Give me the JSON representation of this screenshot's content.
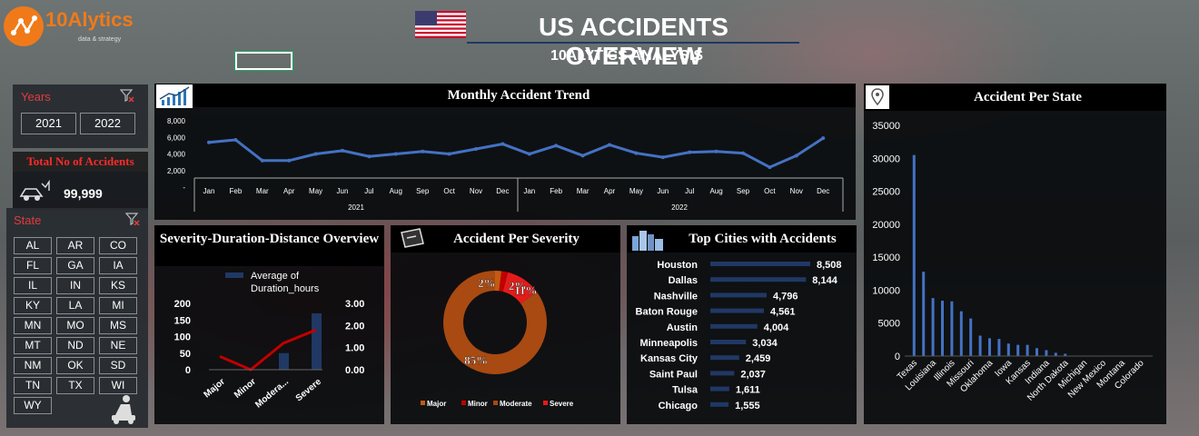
{
  "brand": {
    "name": "10Alytics",
    "tagline": "data & strategy"
  },
  "header": {
    "title": "US ACCIDENTS OVERVIEW",
    "subtitle": "10ALYTICS ANALYSIS"
  },
  "years_filter": {
    "title": "Years",
    "options": [
      "2021",
      "2022"
    ]
  },
  "total_card": {
    "title": "Total No of Accidents",
    "value": "99,999"
  },
  "state_filter": {
    "title": "State",
    "options": [
      "AL",
      "AR",
      "CO",
      "FL",
      "GA",
      "IA",
      "IL",
      "IN",
      "KS",
      "KY",
      "LA",
      "MI",
      "MN",
      "MO",
      "MS",
      "MT",
      "ND",
      "NE",
      "NM",
      "OK",
      "SD",
      "TN",
      "TX",
      "WI",
      "WY"
    ]
  },
  "monthly_trend": {
    "title": "Monthly Accident Trend",
    "chart_data": {
      "type": "line",
      "categories": [
        "Jan",
        "Feb",
        "Mar",
        "Apr",
        "May",
        "Jun",
        "Jul",
        "Aug",
        "Sep",
        "Oct",
        "Nov",
        "Dec",
        "Jan",
        "Feb",
        "Mar",
        "Apr",
        "May",
        "Jun",
        "Jul",
        "Aug",
        "Sep",
        "Oct",
        "Nov",
        "Dec"
      ],
      "groups": [
        "2021",
        "2022"
      ],
      "values": [
        5400,
        5700,
        3200,
        3200,
        4000,
        4400,
        3700,
        4000,
        4300,
        4000,
        4600,
        5200,
        4000,
        5000,
        3800,
        5100,
        4100,
        3600,
        4200,
        4300,
        4100,
        2400,
        3800,
        5900
      ],
      "yticks": [
        "8,000",
        "6,000",
        "4,000",
        "2,000",
        "-"
      ],
      "ylim": [
        0,
        8000
      ],
      "color": "#4472c4"
    }
  },
  "severity_overview": {
    "title": "Severity-Duration-Distance Overview",
    "chart_data": {
      "type": "bar",
      "categories": [
        "Major",
        "Minor",
        "Moderate",
        "Severe"
      ],
      "category_labels": [
        "Major",
        "Minor",
        "Modera...",
        "Severe"
      ],
      "series": [
        {
          "name": "Average of Duration_hours",
          "values": [
            0,
            0,
            50,
            170
          ],
          "axis": "left",
          "color": "#203864"
        },
        {
          "values": [
            0.6,
            0.0,
            1.2,
            1.8
          ],
          "axis": "right",
          "type": "line",
          "color": "#c00000"
        }
      ],
      "y_left_ticks": [
        "200",
        "150",
        "100",
        "50",
        "0"
      ],
      "y_right_ticks": [
        "3.00",
        "2.00",
        "1.00",
        "0.00"
      ],
      "ylim_left": [
        0,
        200
      ],
      "ylim_right": [
        0,
        3
      ]
    }
  },
  "severity_donut": {
    "title": "Accident Per Severity",
    "chart_data": {
      "type": "pie",
      "categories": [
        "Major",
        "Minor",
        "Moderate",
        "Severe"
      ],
      "values": [
        2,
        2,
        85,
        11
      ],
      "labels": [
        "2%",
        "2%",
        "85%",
        "11%"
      ],
      "colors": [
        "#c55a11",
        "#c00000",
        "#a84a12",
        "#e31b1b"
      ]
    }
  },
  "top_cities": {
    "title": "Top Cities with Accidents",
    "chart_data": {
      "type": "bar",
      "categories": [
        "Houston",
        "Dallas",
        "Nashville",
        "Baton Rouge",
        "Austin",
        "Minneapolis",
        "Kansas City",
        "Saint Paul",
        "Tulsa",
        "Chicago"
      ],
      "values": [
        8508,
        8144,
        4796,
        4561,
        4004,
        3034,
        2459,
        2037,
        1611,
        1555
      ],
      "labels": [
        "8,508",
        "8,144",
        "4,796",
        "4,561",
        "4,004",
        "3,034",
        "2,459",
        "2,037",
        "1,611",
        "1,555"
      ],
      "color": "#203864"
    }
  },
  "per_state": {
    "title": "Accident Per State",
    "chart_data": {
      "type": "bar",
      "categories": [
        "Texas",
        "",
        "Louisiana",
        "",
        "Illinois",
        "",
        "Missouri",
        "",
        "Oklahoma",
        "",
        "Iowa",
        "",
        "Kansas",
        "",
        "Indiana",
        "",
        "North Dakota",
        "",
        "Michigan",
        "",
        "New Mexico",
        "",
        "Montana",
        "",
        "Colorado"
      ],
      "values": [
        30500,
        12800,
        8800,
        8400,
        8300,
        6800,
        5700,
        3100,
        2700,
        2600,
        1900,
        1700,
        1700,
        1200,
        900,
        500,
        350,
        0,
        0,
        0,
        0,
        0,
        0,
        0,
        0
      ],
      "yticks": [
        "35000",
        "30000",
        "25000",
        "20000",
        "15000",
        "10000",
        "5000",
        "0"
      ],
      "ylim": [
        0,
        35000
      ],
      "color": "#4472c4"
    }
  }
}
